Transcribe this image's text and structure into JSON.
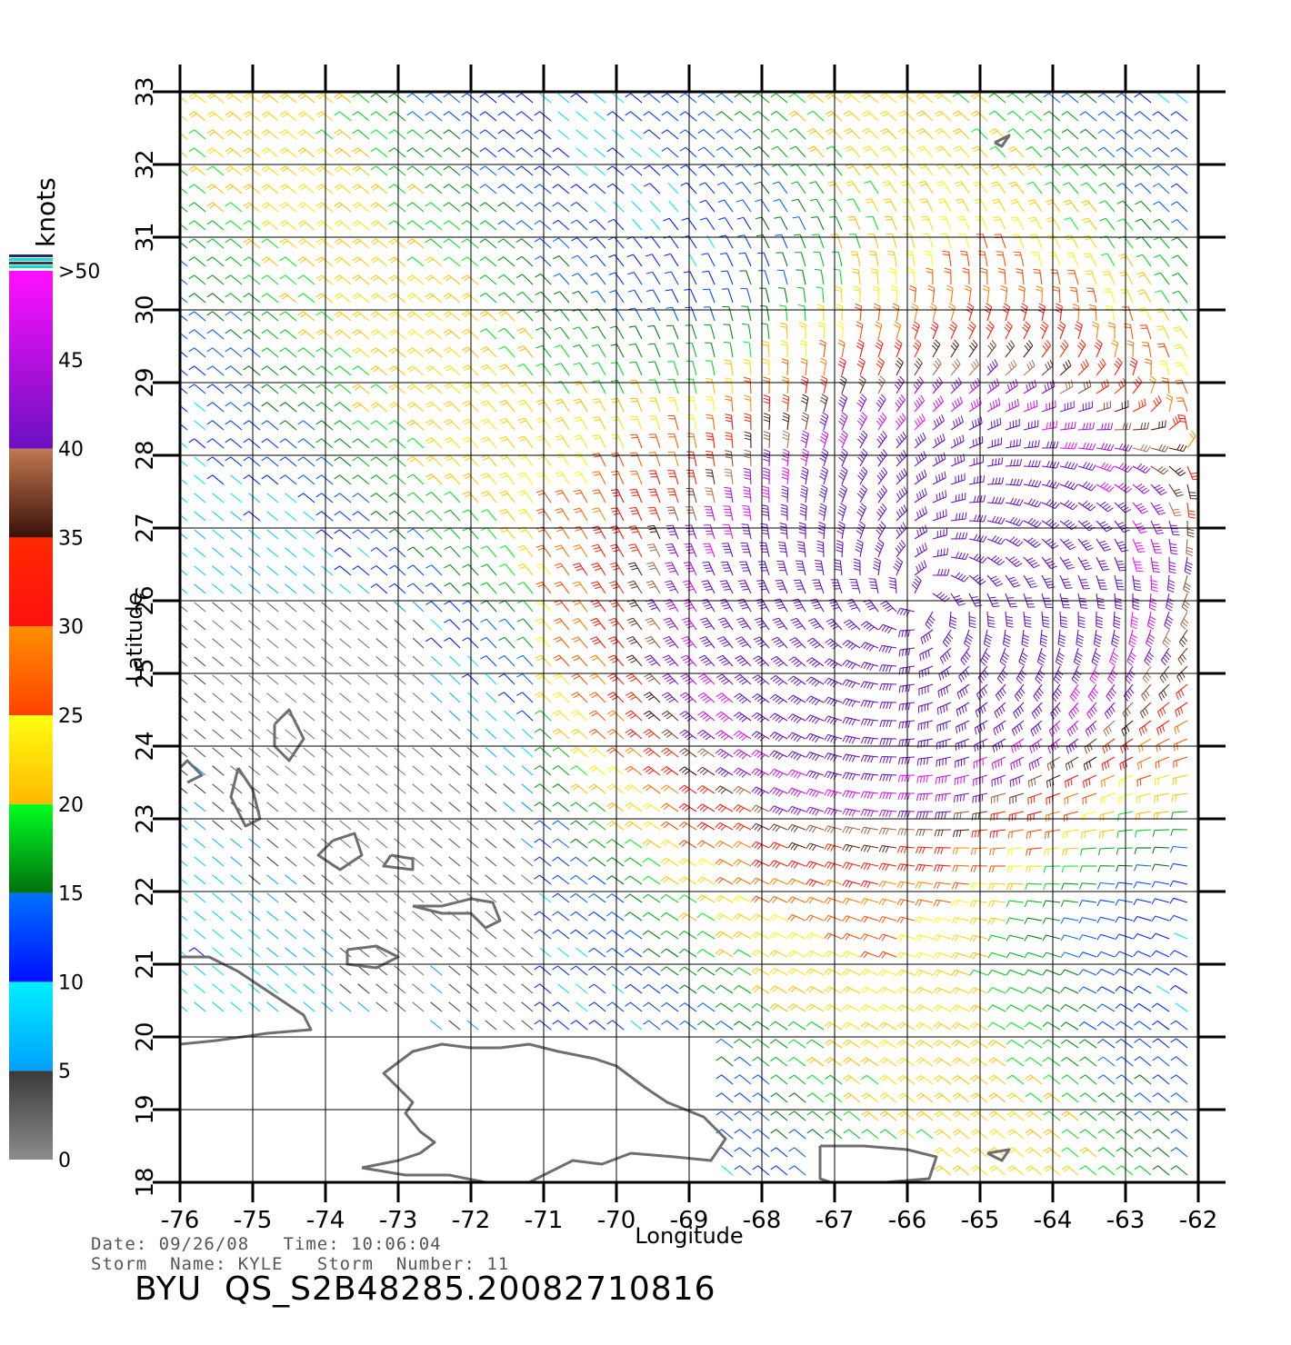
{
  "map": {
    "lon_range": [
      -76,
      -62
    ],
    "lat_range": [
      18,
      33
    ],
    "lon_ticks": [
      -76,
      -75,
      -74,
      -73,
      -72,
      -71,
      -70,
      -69,
      -68,
      -67,
      -66,
      -65,
      -64,
      -63,
      -62
    ],
    "lon_tick_labels": [
      "-76",
      "-75",
      "-74",
      "-73",
      "-72",
      "-71",
      "-70",
      "-69",
      "-68",
      "-67",
      "-66",
      "-65",
      "-64",
      "-63",
      "-62"
    ],
    "lat_ticks": [
      18,
      19,
      20,
      21,
      22,
      23,
      24,
      25,
      26,
      27,
      28,
      29,
      30,
      31,
      32,
      33
    ],
    "lat_tick_labels": [
      "18",
      "19",
      "20",
      "21",
      "22",
      "23",
      "24",
      "25",
      "26",
      "27",
      "28",
      "29",
      "30",
      "31",
      "32",
      "33"
    ],
    "xlabel": "Longitude",
    "ylabel": "Latitude",
    "grid": true,
    "storm_center": {
      "lon": -65.8,
      "lat": 26.0
    },
    "coastline_color": "#6e6e6e"
  },
  "colorbar": {
    "unit": "knots",
    "labels": [
      "0",
      "5",
      "10",
      "15",
      "20",
      "25",
      "30",
      "35",
      "40",
      "45",
      ">50"
    ],
    "bands": [
      {
        "from": 0,
        "to": 5,
        "top": "#3a3a3a",
        "bottom": "#8c8c8c"
      },
      {
        "from": 5,
        "to": 10,
        "top": "#00f0ff",
        "bottom": "#00a0ff"
      },
      {
        "from": 10,
        "to": 15,
        "top": "#0070ff",
        "bottom": "#0010ff"
      },
      {
        "from": 15,
        "to": 20,
        "top": "#00ff20",
        "bottom": "#007010"
      },
      {
        "from": 20,
        "to": 25,
        "top": "#ffff10",
        "bottom": "#ffb800"
      },
      {
        "from": 25,
        "to": 30,
        "top": "#ff9000",
        "bottom": "#ff4000"
      },
      {
        "from": 30,
        "to": 35,
        "top": "#ff2a00",
        "bottom": "#ff1010"
      },
      {
        "from": 35,
        "to": 40,
        "top": "#c07850",
        "bottom": "#3a1008"
      },
      {
        "from": 40,
        "to": 50,
        "top": "#ff10ff",
        "bottom": "#6a10c0"
      }
    ]
  },
  "meta": {
    "line1": "Date: 09/26/08   Time: 10:06:04",
    "line2": "Storm  Name: KYLE   Storm  Number: 11",
    "product": "BYU  QS_S2B48285.20082710816"
  }
}
